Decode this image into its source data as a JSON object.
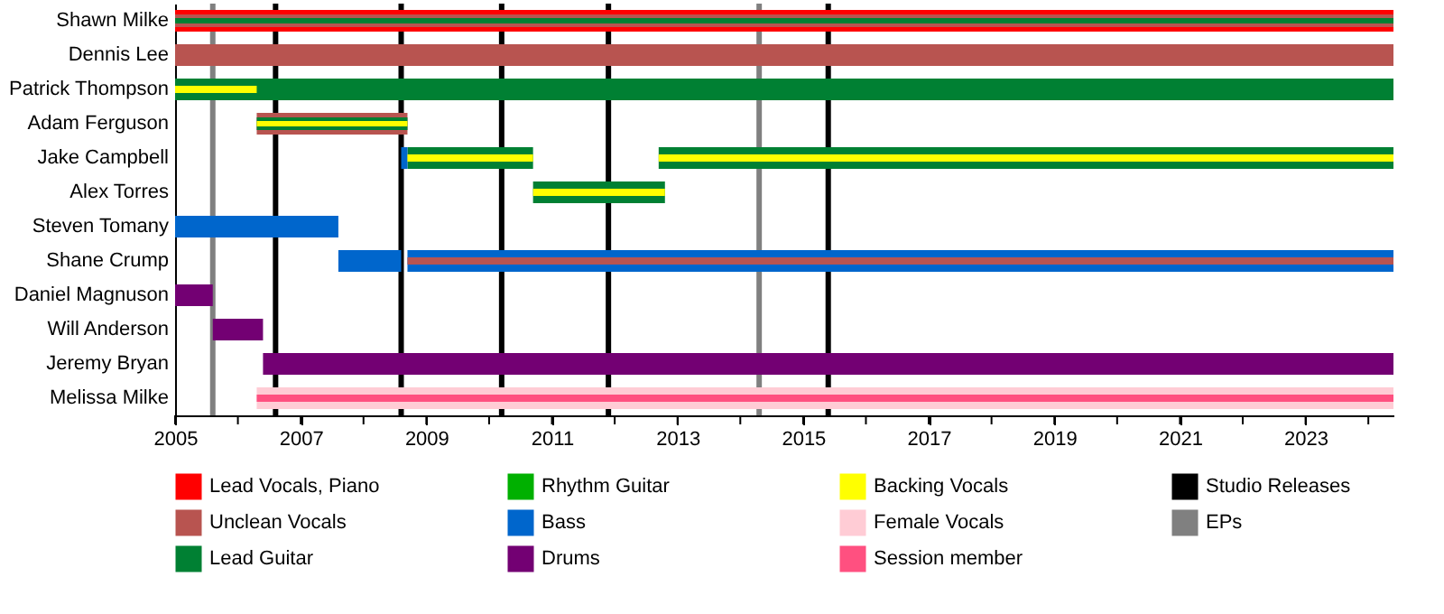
{
  "chart_data": {
    "type": "bar",
    "orientation": "horizontal",
    "categories": [
      "Shawn Milke",
      "Dennis Lee",
      "Patrick Thompson",
      "Adam Ferguson",
      "Jake Campbell",
      "Alex Torres",
      "Steven Tomany",
      "Shane Crump",
      "Daniel Magnuson",
      "Will Anderson",
      "Jeremy Bryan",
      "Melissa Milke"
    ],
    "series": [
      {
        "name": "Lead Vocals, Piano",
        "color": "#ff0000",
        "base": [
          2005,
          null,
          null,
          null,
          null,
          null,
          null,
          null,
          null,
          null,
          null,
          null
        ],
        "values": [
          19.4,
          null,
          null,
          null,
          null,
          null,
          null,
          null,
          null,
          null,
          null,
          null
        ]
      },
      {
        "name": "Unclean Vocals",
        "color": "#b85450",
        "base": [
          2005,
          2005,
          null,
          2006.3,
          null,
          null,
          null,
          null,
          null,
          null,
          null,
          null
        ],
        "values": [
          19.4,
          19.4,
          null,
          2.4,
          null,
          null,
          null,
          null,
          null,
          null,
          null,
          null
        ]
      },
      {
        "name": "Lead Guitar",
        "color": "#008033",
        "base": [
          2005,
          null,
          2005,
          2006.3,
          2008.7,
          2010.7,
          null,
          null,
          null,
          null,
          null,
          null
        ],
        "values": [
          19.4,
          null,
          19.4,
          2.4,
          2.0,
          2.1,
          null,
          null,
          null,
          null,
          null,
          null
        ]
      },
      {
        "color": "#008033",
        "base": [
          null,
          null,
          null,
          null,
          2012.7,
          null,
          null,
          null,
          null,
          null,
          null,
          null
        ],
        "values": [
          null,
          null,
          null,
          null,
          11.7,
          null,
          null,
          null,
          null,
          null,
          null,
          null
        ]
      },
      {
        "name": "Rhythm Guitar",
        "color": "#00b000",
        "base": [
          null,
          null,
          null,
          null,
          null,
          null,
          null,
          null,
          null,
          null,
          null,
          null
        ],
        "values": [
          null,
          null,
          null,
          null,
          null,
          null,
          null,
          null,
          null,
          null,
          null,
          null
        ]
      },
      {
        "name": "Bass",
        "color": "#0066cc",
        "base": [
          null,
          null,
          null,
          null,
          2008.6,
          null,
          2005,
          2007.6,
          null,
          null,
          null,
          null
        ],
        "values": [
          null,
          null,
          null,
          null,
          0.1,
          null,
          2.6,
          1.0,
          null,
          null,
          null,
          null
        ]
      },
      {
        "color": "#0066cc",
        "base": [
          null,
          null,
          null,
          null,
          null,
          null,
          null,
          2008.7,
          null,
          null,
          null,
          null
        ],
        "values": [
          null,
          null,
          null,
          null,
          null,
          null,
          null,
          15.7,
          null,
          null,
          null,
          null
        ]
      },
      {
        "color": "#b85450",
        "base": [
          null,
          null,
          null,
          null,
          null,
          null,
          null,
          2008.7,
          null,
          null,
          null,
          null
        ],
        "values": [
          null,
          null,
          null,
          null,
          null,
          null,
          null,
          15.7,
          null,
          null,
          null,
          null
        ]
      },
      {
        "name": "Drums",
        "color": "#730073",
        "base": [
          null,
          null,
          null,
          null,
          null,
          null,
          null,
          null,
          2005,
          2005.6,
          2006.4,
          null
        ],
        "values": [
          null,
          null,
          null,
          null,
          null,
          null,
          null,
          null,
          0.6,
          0.8,
          18.0,
          null
        ]
      },
      {
        "name": "Backing Vocals",
        "color": "#ffff00",
        "base": [
          null,
          null,
          2005,
          2006.3,
          2008.7,
          2010.7,
          null,
          null,
          null,
          null,
          null,
          null
        ],
        "values": [
          null,
          null,
          1.3,
          2.4,
          2.0,
          2.1,
          null,
          null,
          null,
          null,
          null,
          null
        ]
      },
      {
        "color": "#ffff00",
        "base": [
          null,
          null,
          null,
          null,
          2012.7,
          null,
          null,
          null,
          null,
          null,
          null,
          null
        ],
        "values": [
          null,
          null,
          null,
          null,
          11.7,
          null,
          null,
          null,
          null,
          null,
          null,
          null
        ]
      },
      {
        "name": "Female Vocals",
        "color": "#ffccd5",
        "base": [
          null,
          null,
          null,
          null,
          null,
          null,
          null,
          null,
          null,
          null,
          null,
          2006.3
        ],
        "values": [
          null,
          null,
          null,
          null,
          null,
          null,
          null,
          null,
          null,
          null,
          null,
          18.1
        ]
      },
      {
        "name": "Session member",
        "color": "#ff5080",
        "base": [
          null,
          null,
          null,
          null,
          null,
          null,
          null,
          null,
          null,
          null,
          null,
          2006.3
        ],
        "values": [
          null,
          null,
          null,
          null,
          null,
          null,
          null,
          null,
          null,
          null,
          null,
          18.1
        ]
      }
    ],
    "xlim": [
      2005,
      2024.4
    ],
    "xticks": [
      2005,
      {
        "value": 2006,
        "label": null
      },
      2007,
      {
        "value": 2008,
        "label": null
      },
      2009,
      {
        "value": 2010,
        "label": null
      },
      2011,
      {
        "value": 2012,
        "label": null
      },
      2013,
      {
        "value": 2014,
        "label": null
      },
      2015,
      {
        "value": 2016,
        "label": null
      },
      2017,
      {
        "value": 2018,
        "label": null
      },
      2019,
      {
        "value": 2020,
        "label": null
      },
      2021,
      {
        "value": 2022,
        "label": null
      },
      2023,
      {
        "value": 2024,
        "label": null
      }
    ],
    "ref_lines": [
      {
        "axis": "x",
        "value": 2006.6,
        "label": "Studio Releases",
        "color": "#000000"
      },
      {
        "axis": "x",
        "value": 2008.6,
        "color": "#000000"
      },
      {
        "axis": "x",
        "value": 2010.2,
        "color": "#000000"
      },
      {
        "axis": "x",
        "value": 2011.9,
        "color": "#000000"
      },
      {
        "axis": "x",
        "value": 2015.4,
        "color": "#000000"
      },
      {
        "axis": "x",
        "value": 2005.6,
        "label": "EPs",
        "color": "#808080"
      },
      {
        "axis": "x",
        "value": 2014.3,
        "color": "#808080"
      }
    ],
    "legend": "bottom"
  }
}
